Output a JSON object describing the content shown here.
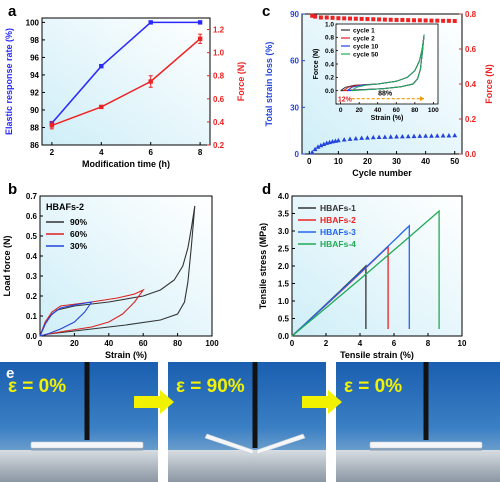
{
  "panels": {
    "a": {
      "letter": "a",
      "chart_data": {
        "type": "line",
        "x": [
          2,
          4,
          6,
          8
        ],
        "xlabel": "Modification time (h)",
        "xlim": [
          1.6,
          8.4
        ],
        "xticks": [
          2,
          4,
          6,
          8
        ],
        "series": [
          {
            "name": "Elastic response rate (%)",
            "axis": "left",
            "color": "#2828ff",
            "marker": "square",
            "values": [
              88.5,
              95.0,
              100.0,
              100.0
            ]
          },
          {
            "name": "Force (N)",
            "axis": "right",
            "color": "#ee2222",
            "marker": "square",
            "values": [
              0.37,
              0.53,
              0.75,
              1.12
            ],
            "errors": [
              0.03,
              0.01,
              0.05,
              0.04
            ]
          }
        ],
        "ylabel_left": "Elastic response rate (%)",
        "ylim_left": [
          86,
          100.5
        ],
        "yticks_left": [
          86,
          88,
          90,
          92,
          94,
          96,
          98,
          100
        ],
        "ylabel_right": "Force (N)",
        "ylim_right": [
          0.2,
          1.3
        ],
        "yticks_right": [
          0.2,
          0.4,
          0.6,
          0.8,
          1.0,
          1.2
        ],
        "yticklabels_right": [
          "0.2",
          "0.4",
          "0.6",
          "0.8",
          "1.0",
          "1.2"
        ]
      }
    },
    "b": {
      "letter": "b",
      "chart_data": {
        "type": "line",
        "title": "HBAFs-2",
        "xlabel": "Strain (%)",
        "ylabel": "Load force (N)",
        "xlim": [
          0,
          100
        ],
        "xticks": [
          0,
          20,
          40,
          60,
          80,
          100
        ],
        "ylim": [
          0,
          0.7
        ],
        "yticks": [
          0.0,
          0.1,
          0.2,
          0.3,
          0.4,
          0.5,
          0.6,
          0.7
        ],
        "yticklabels": [
          "0.0",
          "0.1",
          "0.2",
          "0.3",
          "0.4",
          "0.5",
          "0.6",
          "0.7"
        ],
        "series": [
          {
            "name": "90%",
            "color": "#333333",
            "loading": [
              [
                0,
                0
              ],
              [
                3,
                0.06
              ],
              [
                6,
                0.1
              ],
              [
                10,
                0.13
              ],
              [
                20,
                0.15
              ],
              [
                40,
                0.17
              ],
              [
                60,
                0.2
              ],
              [
                70,
                0.23
              ],
              [
                78,
                0.28
              ],
              [
                83,
                0.35
              ],
              [
                86,
                0.44
              ],
              [
                88,
                0.54
              ],
              [
                90,
                0.65
              ]
            ],
            "unloading": [
              [
                90,
                0.65
              ],
              [
                88,
                0.45
              ],
              [
                86,
                0.27
              ],
              [
                84,
                0.17
              ],
              [
                80,
                0.11
              ],
              [
                70,
                0.08
              ],
              [
                50,
                0.055
              ],
              [
                30,
                0.035
              ],
              [
                15,
                0.02
              ],
              [
                5,
                0.01
              ],
              [
                0,
                0.0
              ]
            ]
          },
          {
            "name": "60%",
            "color": "#dd2222",
            "loading": [
              [
                0,
                0
              ],
              [
                3,
                0.07
              ],
              [
                7,
                0.12
              ],
              [
                12,
                0.15
              ],
              [
                30,
                0.17
              ],
              [
                45,
                0.19
              ],
              [
                55,
                0.21
              ],
              [
                60,
                0.23
              ]
            ],
            "unloading": [
              [
                60,
                0.23
              ],
              [
                55,
                0.17
              ],
              [
                48,
                0.11
              ],
              [
                40,
                0.07
              ],
              [
                30,
                0.045
              ],
              [
                15,
                0.025
              ],
              [
                5,
                0.01
              ],
              [
                0,
                0.0
              ]
            ]
          },
          {
            "name": "30%",
            "color": "#2244dd",
            "loading": [
              [
                0,
                0
              ],
              [
                3,
                0.06
              ],
              [
                7,
                0.11
              ],
              [
                12,
                0.14
              ],
              [
                20,
                0.155
              ],
              [
                30,
                0.17
              ]
            ],
            "unloading": [
              [
                30,
                0.17
              ],
              [
                26,
                0.12
              ],
              [
                20,
                0.07
              ],
              [
                12,
                0.035
              ],
              [
                5,
                0.012
              ],
              [
                0,
                0.0
              ]
            ]
          }
        ]
      }
    },
    "c": {
      "letter": "c",
      "chart_data": {
        "type": "scatter",
        "xlabel": "Cycle number",
        "xlim": [
          -2.5,
          52.5
        ],
        "xticks": [
          0,
          10,
          20,
          30,
          40,
          50
        ],
        "ylabel_left": "Total strain loss (%)",
        "ylim_left": [
          0,
          90
        ],
        "yticks_left": [
          0,
          30,
          60,
          90
        ],
        "ylabel_right": "Force (N)",
        "ylim_right": [
          0,
          0.8
        ],
        "yticks_right": [
          0.0,
          0.2,
          0.4,
          0.6,
          0.8
        ],
        "yticklabels_right": [
          "0.0",
          "0.2",
          "0.4",
          "0.6",
          "0.8"
        ],
        "series": [
          {
            "name": "Total strain loss (%)",
            "axis": "left",
            "color": "#2244dd",
            "marker": "triangle",
            "x": [
              1,
              2,
              3,
              4,
              5,
              6,
              7,
              8,
              9,
              10,
              12,
              14,
              16,
              18,
              20,
              22,
              24,
              26,
              28,
              30,
              32,
              34,
              36,
              38,
              40,
              42,
              44,
              46,
              48,
              50
            ],
            "values": [
              1.0,
              3.0,
              4.5,
              5.5,
              6.3,
              7.0,
              7.5,
              8.0,
              8.3,
              8.7,
              9.2,
              9.6,
              9.9,
              10.2,
              10.4,
              10.6,
              10.8,
              10.9,
              11.0,
              11.1,
              11.2,
              11.3,
              11.4,
              11.5,
              11.6,
              11.6,
              11.7,
              11.8,
              11.8,
              11.9
            ]
          },
          {
            "name": "Force (N)",
            "axis": "right",
            "color": "#ee2222",
            "marker": "square",
            "x": [
              1,
              2,
              4,
              6,
              8,
              10,
              12,
              14,
              16,
              18,
              20,
              22,
              24,
              26,
              28,
              30,
              32,
              34,
              36,
              38,
              40,
              42,
              44,
              46,
              48,
              50
            ],
            "values": [
              0.79,
              0.785,
              0.78,
              0.78,
              0.778,
              0.776,
              0.775,
              0.774,
              0.773,
              0.772,
              0.771,
              0.77,
              0.769,
              0.768,
              0.767,
              0.766,
              0.766,
              0.765,
              0.764,
              0.764,
              0.763,
              0.762,
              0.762,
              0.761,
              0.761,
              0.76
            ]
          }
        ],
        "inset": {
          "xlabel": "Strain (%)",
          "ylabel": "Force (N)",
          "xlim": [
            -5,
            105
          ],
          "xticks": [
            0,
            20,
            40,
            60,
            80,
            100
          ],
          "ylim": [
            -0.2,
            1.0
          ],
          "yticks": [
            -0.2,
            0.0,
            0.2,
            0.4,
            0.6,
            0.8,
            1.0
          ],
          "yticklabels": [
            "",
            "0.0",
            "0.2",
            "0.4",
            "0.6",
            "0.8",
            "1.0"
          ],
          "annotations": [
            "12%",
            "88%"
          ],
          "series": [
            {
              "name": "cycle 1",
              "color": "#333333",
              "offset": 0
            },
            {
              "name": "cycle 2",
              "color": "#dd2222",
              "offset": 3
            },
            {
              "name": "cycle 10",
              "color": "#2244dd",
              "offset": 7
            },
            {
              "name": "cycle 50",
              "color": "#22aa55",
              "offset": 12
            }
          ]
        }
      }
    },
    "d": {
      "letter": "d",
      "chart_data": {
        "type": "line",
        "xlabel": "Tensile strain (%)",
        "ylabel": "Tensile stress (MPa)",
        "xlim": [
          0,
          10
        ],
        "xticks": [
          0,
          2,
          4,
          6,
          8,
          10
        ],
        "ylim": [
          0,
          4.0
        ],
        "yticks": [
          0.0,
          0.5,
          1.0,
          1.5,
          2.0,
          2.5,
          3.0,
          3.5,
          4.0
        ],
        "yticklabels": [
          "0.0",
          "0.5",
          "1.0",
          "1.5",
          "2.0",
          "2.5",
          "3.0",
          "3.5",
          "4.0"
        ],
        "series": [
          {
            "name": "HBAFs-1",
            "color": "#333333",
            "break_strain": 4.35,
            "break_stress": 2.0
          },
          {
            "name": "HBAFs-2",
            "color": "#ee2222",
            "break_strain": 5.65,
            "break_stress": 2.55
          },
          {
            "name": "HBAFs-3",
            "color": "#2266ee",
            "break_strain": 6.9,
            "break_stress": 3.15
          },
          {
            "name": "HBAFs-4",
            "color": "#22aa55",
            "break_strain": 8.65,
            "break_stress": 3.57
          }
        ]
      }
    }
  },
  "photos": {
    "letter": "e",
    "frames": [
      {
        "label": "ε = 0%",
        "state": "flat"
      },
      {
        "label": "ε = 90%",
        "state": "compressed"
      },
      {
        "label": "ε = 0%",
        "state": "flat"
      }
    ],
    "arrow_color": "#f2f200"
  }
}
